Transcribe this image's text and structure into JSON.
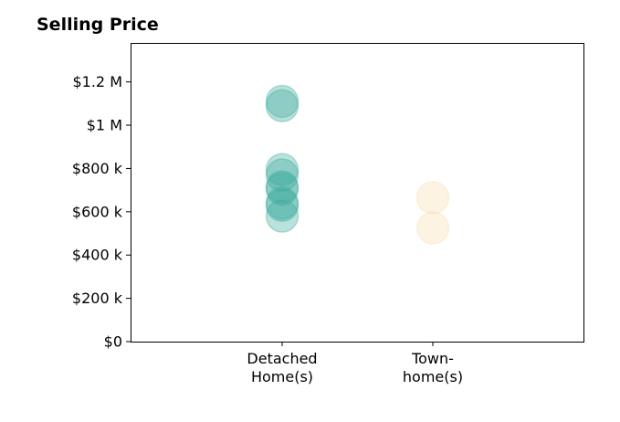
{
  "chart_data": {
    "type": "scatter",
    "title": "Selling Price",
    "xlabel": "",
    "ylabel": "",
    "categories": [
      [
        "Detached",
        "Home(s)"
      ],
      [
        "Town-",
        "home(s)"
      ]
    ],
    "ylim": [
      0,
      1380000
    ],
    "yticks": [
      {
        "value": 0,
        "label": "$0"
      },
      {
        "value": 200000,
        "label": "$200 k"
      },
      {
        "value": 400000,
        "label": "$400 k"
      },
      {
        "value": 600000,
        "label": "$600 k"
      },
      {
        "value": 800000,
        "label": "$800 k"
      },
      {
        "value": 1000000,
        "label": "$1 M"
      },
      {
        "value": 1200000,
        "label": "$1.2 M"
      }
    ],
    "grid": false,
    "legend": "none",
    "series": [
      {
        "category_index": 0,
        "color": "#3aa99a",
        "values": [
          1110000,
          1090000,
          795000,
          770000,
          715000,
          705000,
          640000,
          630000,
          580000
        ]
      },
      {
        "category_index": 1,
        "color": "#f5deb0",
        "values": [
          665000,
          525000
        ]
      }
    ]
  }
}
